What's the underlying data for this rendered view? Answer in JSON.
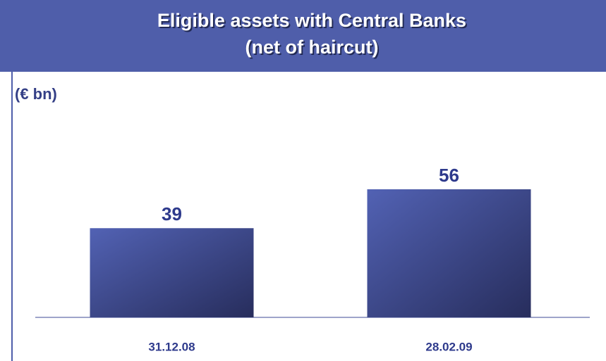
{
  "chart_data": {
    "type": "bar",
    "title": "Eligible assets with Central Banks",
    "subtitle": "(net of haircut)",
    "unit_label": "(€ bn)",
    "categories": [
      "31.12.08",
      "28.02.09"
    ],
    "values": [
      39,
      56
    ],
    "color": "#4a5aa8"
  }
}
